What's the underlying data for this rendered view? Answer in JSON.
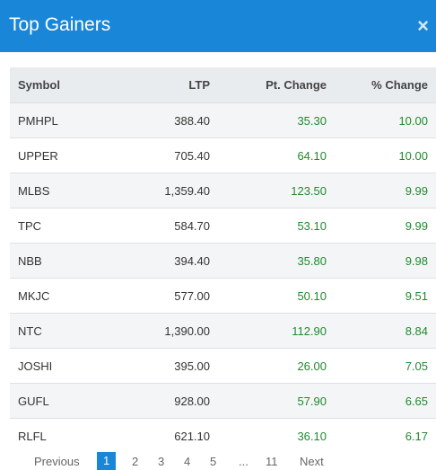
{
  "modal": {
    "title": "Top Gainers",
    "close_label": "×"
  },
  "table": {
    "columns": [
      "Symbol",
      "LTP",
      "Pt. Change",
      "% Change"
    ],
    "rows": [
      {
        "symbol": "PMHPL",
        "ltp": "388.40",
        "pt": "35.30",
        "pct": "10.00"
      },
      {
        "symbol": "UPPER",
        "ltp": "705.40",
        "pt": "64.10",
        "pct": "10.00"
      },
      {
        "symbol": "MLBS",
        "ltp": "1,359.40",
        "pt": "123.50",
        "pct": "9.99"
      },
      {
        "symbol": "TPC",
        "ltp": "584.70",
        "pt": "53.10",
        "pct": "9.99"
      },
      {
        "symbol": "NBB",
        "ltp": "394.40",
        "pt": "35.80",
        "pct": "9.98"
      },
      {
        "symbol": "MKJC",
        "ltp": "577.00",
        "pt": "50.10",
        "pct": "9.51"
      },
      {
        "symbol": "NTC",
        "ltp": "1,390.00",
        "pt": "112.90",
        "pct": "8.84"
      },
      {
        "symbol": "JOSHI",
        "ltp": "395.00",
        "pt": "26.00",
        "pct": "7.05"
      },
      {
        "symbol": "GUFL",
        "ltp": "928.00",
        "pt": "57.90",
        "pct": "6.65"
      },
      {
        "symbol": "RLFL",
        "ltp": "621.10",
        "pt": "36.10",
        "pct": "6.17"
      }
    ]
  },
  "pagination": {
    "previous": "Previous",
    "pages": [
      "1",
      "2",
      "3",
      "4",
      "5",
      "11"
    ],
    "ellipsis": "...",
    "next": "Next",
    "current": "1"
  },
  "colors": {
    "header": "#1a86d8",
    "positive": "#1e8a2e"
  }
}
